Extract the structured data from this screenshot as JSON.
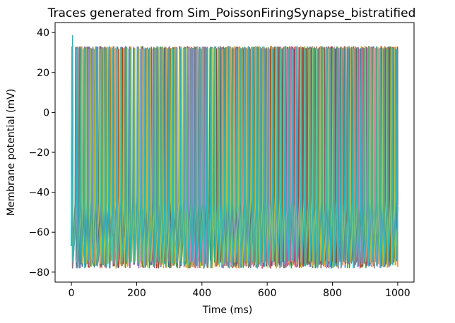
{
  "chart_data": {
    "type": "line",
    "title": "Traces generated from Sim_PoissonFiringSynapse_bistratified",
    "xlabel": "Time (ms)",
    "ylabel": "Membrane potential (mV)",
    "xlim": [
      -50,
      1050
    ],
    "ylim": [
      -85,
      45
    ],
    "x_ticks": [
      0,
      200,
      400,
      600,
      800,
      1000
    ],
    "y_ticks": [
      -80,
      -60,
      -40,
      -20,
      0,
      20,
      40
    ],
    "grid": false,
    "legend": "none",
    "trace_style": {
      "spike_peak_mv": 33,
      "initial_peak_mv": 38.5,
      "resting_trough_mv": -74,
      "min_trough_mv": -78,
      "start_value_mv": -67,
      "end_value_mv": -50,
      "mean_isi_ms": 12.5,
      "duration_ms": 1000
    },
    "series": [
      {
        "color": "#1f77b4"
      },
      {
        "color": "#ff7f0e"
      },
      {
        "color": "#2ca02c"
      },
      {
        "color": "#d62728"
      },
      {
        "color": "#9467bd"
      },
      {
        "color": "#8c564b"
      },
      {
        "color": "#e377c2"
      },
      {
        "color": "#7f7f7f"
      },
      {
        "color": "#bcbd22"
      },
      {
        "color": "#17becf"
      }
    ]
  }
}
